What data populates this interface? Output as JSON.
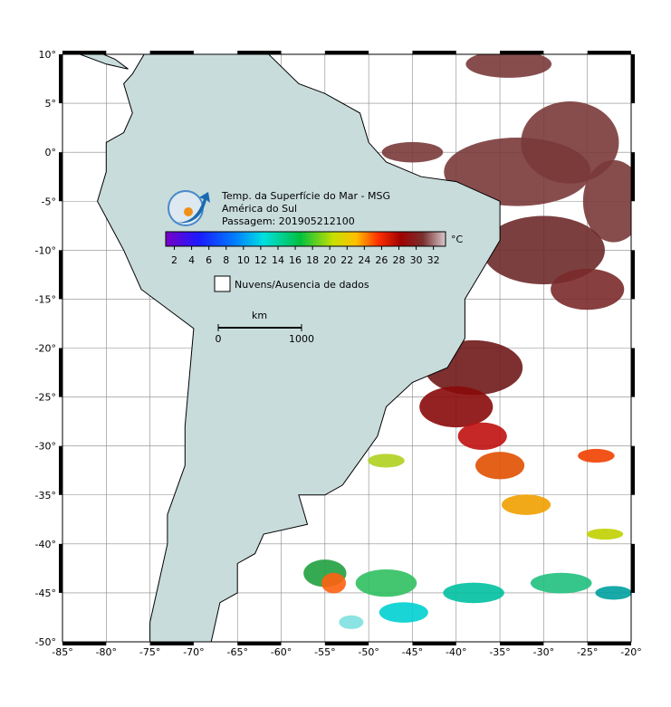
{
  "map": {
    "lonlim": [
      -85,
      -20
    ],
    "latlim": [
      -50,
      10
    ],
    "lon_ticks": [
      {
        "value": -85,
        "label": "-85°"
      },
      {
        "value": -80,
        "label": "-80°"
      },
      {
        "value": -75,
        "label": "-75°"
      },
      {
        "value": -70,
        "label": "-70°"
      },
      {
        "value": -65,
        "label": "-65°"
      },
      {
        "value": -60,
        "label": "-60°"
      },
      {
        "value": -55,
        "label": "-55°"
      },
      {
        "value": -50,
        "label": "-50°"
      },
      {
        "value": -45,
        "label": "-45°"
      },
      {
        "value": -40,
        "label": "-40°"
      },
      {
        "value": -35,
        "label": "-35°"
      },
      {
        "value": -30,
        "label": "-30°"
      },
      {
        "value": -25,
        "label": "-25°"
      },
      {
        "value": -20,
        "label": "-20°"
      }
    ],
    "lat_ticks": [
      {
        "value": 10,
        "label": "10°"
      },
      {
        "value": 5,
        "label": "5°"
      },
      {
        "value": 0,
        "label": "0°"
      },
      {
        "value": -5,
        "label": "-5°"
      },
      {
        "value": -10,
        "label": "-10°"
      },
      {
        "value": -15,
        "label": "-15°"
      },
      {
        "value": -20,
        "label": "-20°"
      },
      {
        "value": -25,
        "label": "-25°"
      },
      {
        "value": -30,
        "label": "-30°"
      },
      {
        "value": -35,
        "label": "-35°"
      },
      {
        "value": -40,
        "label": "-40°"
      },
      {
        "value": -45,
        "label": "-45°"
      },
      {
        "value": -50,
        "label": "-50°"
      }
    ]
  },
  "legend": {
    "title": "Temp. da Superfície do Mar - MSG",
    "region": "América do Sul",
    "pass": "Passagem: 201905212100",
    "colorbar": {
      "unit": "°C",
      "range": [
        1,
        33.4
      ],
      "ticks": [
        2,
        4,
        6,
        8,
        10,
        12,
        14,
        16,
        18,
        20,
        22,
        24,
        26,
        28,
        30,
        32
      ]
    },
    "cloud_label": "Nuvens/Ausencia de dados",
    "scale": {
      "unit": "km",
      "labels": [
        "0",
        "1000"
      ]
    }
  }
}
